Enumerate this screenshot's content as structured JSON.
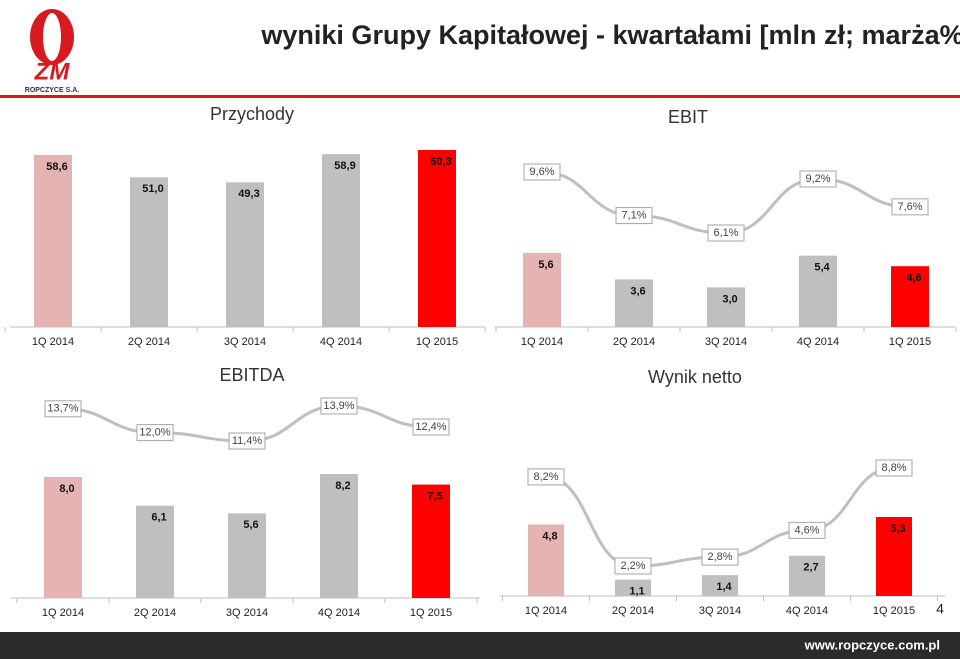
{
  "header": {
    "title": "wyniki Grupy Kapitałowej - kwartałami [mln zł; marża%]",
    "logo_text": "ZM",
    "logo_subtext": "ROPCZYCE S.A."
  },
  "footer": {
    "url": "www.ropczyce.com.pl",
    "page_number": 4
  },
  "chart_data": [
    {
      "type": "bar",
      "title": "Przychody",
      "categories": [
        "1Q 2014",
        "2Q 2014",
        "3Q 2014",
        "4Q 2014",
        "1Q 2015"
      ],
      "series": [
        {
          "type": "bar",
          "values": [
            58.6,
            51.0,
            49.3,
            58.9,
            60.3
          ],
          "value_labels": [
            "58,6",
            "51,0",
            "49,3",
            "58,9",
            "60,3"
          ],
          "colors": [
            "#e6b3b3",
            "#bfbfbf",
            "#bfbfbf",
            "#bfbfbf",
            "#ff0000"
          ]
        }
      ]
    },
    {
      "type": "bar",
      "title": "EBIT",
      "categories": [
        "1Q 2014",
        "2Q 2014",
        "3Q 2014",
        "4Q 2014",
        "1Q 2015"
      ],
      "series": [
        {
          "type": "bar",
          "values": [
            5.6,
            3.6,
            3.0,
            5.4,
            4.6
          ],
          "value_labels": [
            "5,6",
            "3,6",
            "3,0",
            "5,4",
            "4,6"
          ],
          "colors": [
            "#e6b3b3",
            "#bfbfbf",
            "#bfbfbf",
            "#bfbfbf",
            "#ff0000"
          ]
        },
        {
          "type": "line",
          "axis": "y2",
          "color": "#bfbfbf",
          "values": [
            9.6,
            7.1,
            6.1,
            9.2,
            7.6
          ],
          "value_labels": [
            "9,6%",
            "7,1%",
            "6,1%",
            "9,2%",
            "7,6%"
          ]
        }
      ]
    },
    {
      "type": "bar",
      "title": "EBITDA",
      "categories": [
        "1Q 2014",
        "2Q 2014",
        "3Q 2014",
        "4Q 2014",
        "1Q 2015"
      ],
      "series": [
        {
          "type": "bar",
          "values": [
            8.0,
            6.1,
            5.6,
            8.2,
            7.5
          ],
          "value_labels": [
            "8,0",
            "6,1",
            "5,6",
            "8,2",
            "7,5"
          ],
          "colors": [
            "#e6b3b3",
            "#bfbfbf",
            "#bfbfbf",
            "#bfbfbf",
            "#ff0000"
          ]
        },
        {
          "type": "line",
          "axis": "y2",
          "color": "#bfbfbf",
          "values": [
            13.7,
            12.0,
            11.4,
            13.9,
            12.4
          ],
          "value_labels": [
            "13,7%",
            "12,0%",
            "11,4%",
            "13,9%",
            "12,4%"
          ]
        }
      ]
    },
    {
      "type": "bar",
      "title": "Wynik netto",
      "categories": [
        "1Q 2014",
        "2Q 2014",
        "3Q 2014",
        "4Q 2014",
        "1Q 2015"
      ],
      "series": [
        {
          "type": "bar",
          "values": [
            4.8,
            1.1,
            1.4,
            2.7,
            5.3
          ],
          "value_labels": [
            "4,8",
            "1,1",
            "1,4",
            "2,7",
            "5,3"
          ],
          "colors": [
            "#e6b3b3",
            "#bfbfbf",
            "#bfbfbf",
            "#bfbfbf",
            "#ff0000"
          ]
        },
        {
          "type": "line",
          "axis": "y2",
          "color": "#bfbfbf",
          "values": [
            8.2,
            2.2,
            2.8,
            4.6,
            8.8
          ],
          "value_labels": [
            "8,2%",
            "2,2%",
            "2,8%",
            "4,6%",
            "8,8%"
          ]
        }
      ]
    }
  ]
}
